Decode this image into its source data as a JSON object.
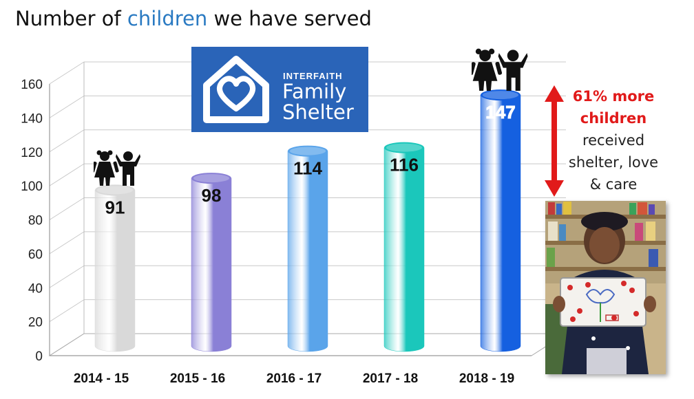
{
  "title": {
    "prefix": "Number of ",
    "highlight": "children",
    "suffix": " we have served"
  },
  "logo": {
    "line1": "INTERFAITH",
    "line2": "Family",
    "line3": "Shelter"
  },
  "note": {
    "highlight": "61% more children",
    "rest": [
      "received",
      "shelter, love",
      "& care"
    ]
  },
  "colors": {
    "accent": "#2a7ac2",
    "logo_bg": "#2a64b8",
    "arrow": "#e11a1a"
  },
  "icons": [
    "children-icon",
    "up-down-arrow-icon",
    "house-heart-icon"
  ],
  "chart_data": {
    "type": "bar",
    "categories": [
      "2014 - 15",
      "2015 - 16",
      "2016 - 17",
      "2017 - 18",
      "2018 - 19"
    ],
    "values": [
      91,
      98,
      114,
      116,
      147
    ],
    "data_labels": [
      "91",
      "98",
      "114",
      "116",
      "147"
    ],
    "bar_colors": [
      "#d9d9d9",
      "#8a80d6",
      "#5aa4ea",
      "#1bc7bb",
      "#1560e0"
    ],
    "ylim": [
      0,
      160
    ],
    "yticks": [
      0,
      20,
      40,
      60,
      80,
      100,
      120,
      140,
      160
    ],
    "grid": true,
    "style": "3d-cylinder"
  }
}
